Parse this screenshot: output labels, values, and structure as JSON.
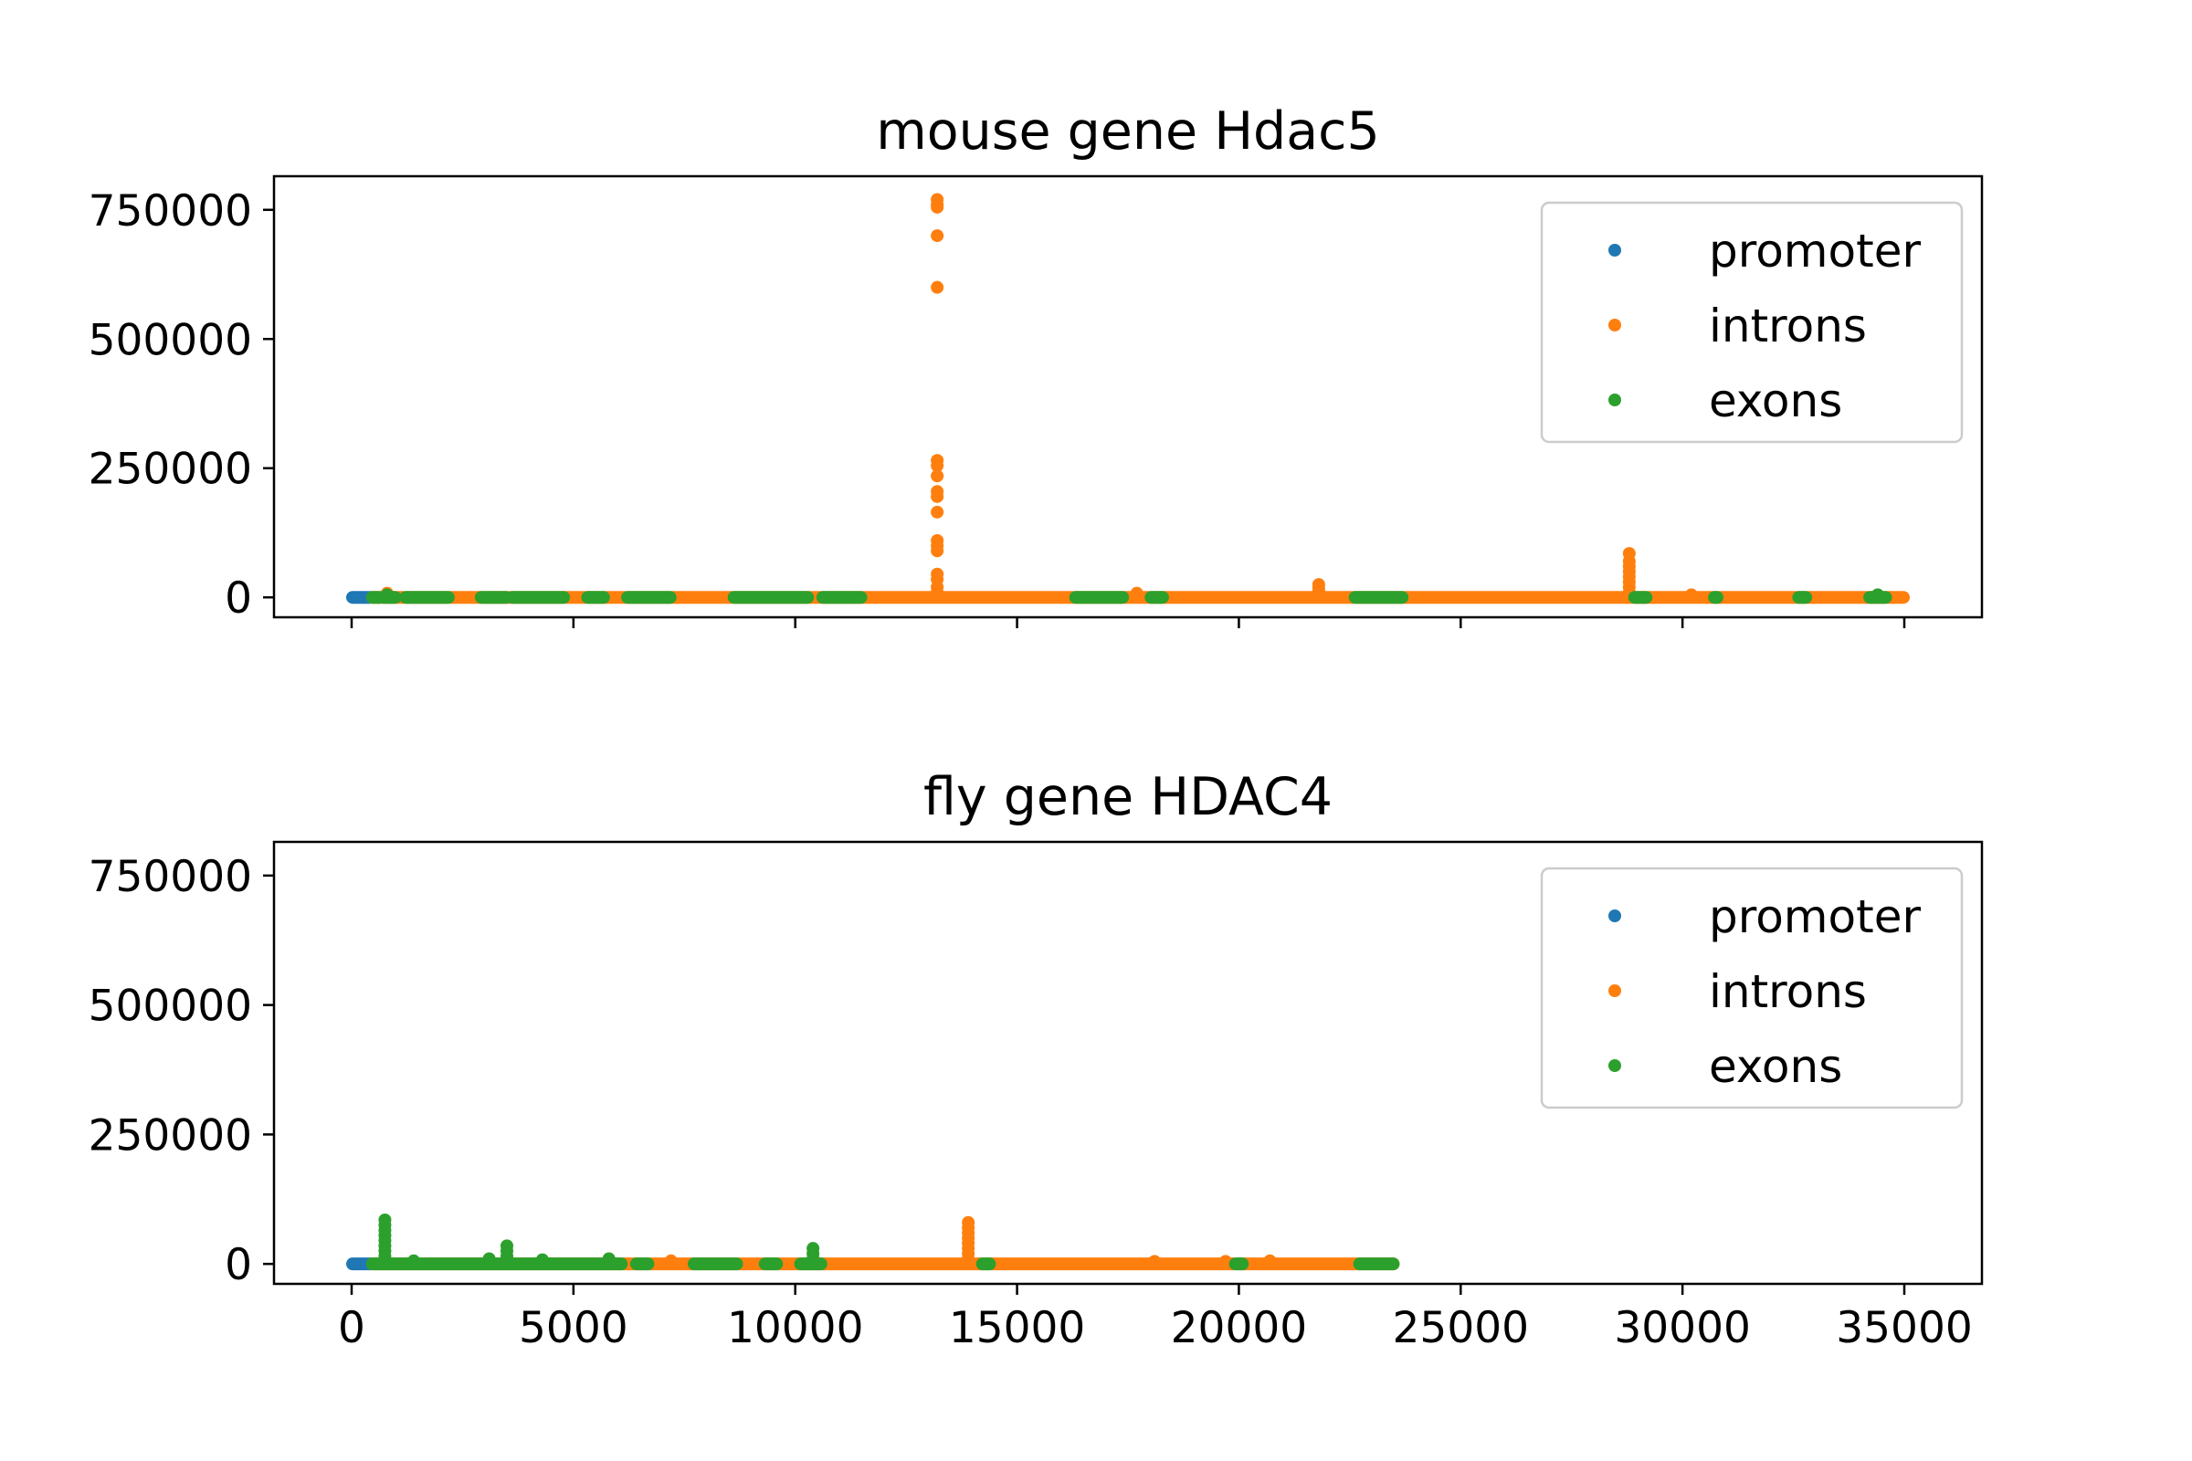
{
  "chart_data": [
    {
      "type": "scatter",
      "title": "mouse gene Hdac5",
      "xlabel": "",
      "ylabel": "",
      "xlim": [
        -1750,
        36750
      ],
      "ylim": [
        -38500,
        815000
      ],
      "xticks": [
        0,
        5000,
        10000,
        15000,
        20000,
        25000,
        30000,
        35000
      ],
      "xtick_labels": [
        "",
        "",
        "",
        "",
        "",
        "",
        "",
        ""
      ],
      "yticks": [
        0,
        250000,
        500000,
        750000
      ],
      "ytick_labels": [
        "0",
        "250000",
        "500000",
        "750000"
      ],
      "grid": false,
      "legend_position": "top-right",
      "series": [
        {
          "name": "promoter",
          "color": "#1f77b4",
          "bands": [
            [
              0,
              450
            ]
          ],
          "points": []
        },
        {
          "name": "introns",
          "color": "#ff7f0e",
          "bands": [
            [
              450,
              35000
            ]
          ],
          "points": [
            [
              13200,
              770000
            ],
            [
              13200,
              760000
            ],
            [
              13200,
              755000
            ],
            [
              13200,
              700000
            ],
            [
              13200,
              600000
            ],
            [
              13200,
              265000
            ],
            [
              13200,
              255000
            ],
            [
              13200,
              235000
            ],
            [
              13200,
              205000
            ],
            [
              13200,
              195000
            ],
            [
              13200,
              165000
            ],
            [
              13200,
              110000
            ],
            [
              13200,
              100000
            ],
            [
              13200,
              90000
            ],
            [
              13200,
              45000
            ],
            [
              13200,
              35000
            ],
            [
              13200,
              20000
            ],
            [
              13200,
              10000
            ],
            [
              21800,
              25000
            ],
            [
              21800,
              18000
            ],
            [
              21800,
              12000
            ],
            [
              21800,
              6000
            ],
            [
              28800,
              85000
            ],
            [
              28800,
              70000
            ],
            [
              28800,
              60000
            ],
            [
              28800,
              50000
            ],
            [
              28800,
              40000
            ],
            [
              28800,
              30000
            ],
            [
              28800,
              20000
            ],
            [
              28800,
              10000
            ],
            [
              800,
              8000
            ],
            [
              17700,
              8000
            ],
            [
              30200,
              5000
            ]
          ]
        },
        {
          "name": "exons",
          "color": "#2ca02c",
          "bands": [
            [
              450,
              650
            ],
            [
              700,
              1000
            ],
            [
              1200,
              2200
            ],
            [
              2900,
              3500
            ],
            [
              3600,
              4800
            ],
            [
              5300,
              5700
            ],
            [
              6200,
              7200
            ],
            [
              8600,
              10300
            ],
            [
              10600,
              11500
            ],
            [
              16300,
              17400
            ],
            [
              18000,
              18300
            ],
            [
              22600,
              23700
            ],
            [
              28900,
              29200
            ],
            [
              30700,
              30800
            ],
            [
              32600,
              32800
            ],
            [
              34200,
              34600
            ]
          ],
          "points": [
            [
              800,
              5000
            ],
            [
              34400,
              5000
            ]
          ]
        }
      ]
    },
    {
      "type": "scatter",
      "title": "fly gene HDAC4",
      "xlabel": "",
      "ylabel": "",
      "xlim": [
        -1750,
        36750
      ],
      "ylim": [
        -38500,
        815000
      ],
      "xticks": [
        0,
        5000,
        10000,
        15000,
        20000,
        25000,
        30000,
        35000
      ],
      "xtick_labels": [
        "0",
        "5000",
        "10000",
        "15000",
        "20000",
        "25000",
        "30000",
        "35000"
      ],
      "yticks": [
        0,
        250000,
        500000,
        750000
      ],
      "ytick_labels": [
        "0",
        "250000",
        "500000",
        "750000"
      ],
      "grid": false,
      "legend_position": "top-right",
      "series": [
        {
          "name": "promoter",
          "color": "#1f77b4",
          "bands": [
            [
              0,
              450
            ]
          ],
          "points": []
        },
        {
          "name": "introns",
          "color": "#ff7f0e",
          "bands": [
            [
              450,
              23500
            ]
          ],
          "points": [
            [
              13900,
              80000
            ],
            [
              13900,
              70000
            ],
            [
              13900,
              60000
            ],
            [
              13900,
              50000
            ],
            [
              13900,
              40000
            ],
            [
              13900,
              30000
            ],
            [
              13900,
              20000
            ],
            [
              13900,
              10000
            ],
            [
              7200,
              6000
            ],
            [
              18100,
              5000
            ],
            [
              19700,
              5000
            ],
            [
              20700,
              6000
            ]
          ]
        },
        {
          "name": "exons",
          "color": "#2ca02c",
          "bands": [
            [
              450,
              6100
            ],
            [
              6400,
              6700
            ],
            [
              7700,
              8700
            ],
            [
              9300,
              9600
            ],
            [
              10100,
              10600
            ],
            [
              14200,
              14400
            ],
            [
              19900,
              20100
            ],
            [
              22700,
              23500
            ]
          ],
          "points": [
            [
              750,
              85000
            ],
            [
              750,
              75000
            ],
            [
              750,
              65000
            ],
            [
              750,
              55000
            ],
            [
              750,
              45000
            ],
            [
              750,
              35000
            ],
            [
              750,
              25000
            ],
            [
              750,
              15000
            ],
            [
              750,
              8000
            ],
            [
              3500,
              35000
            ],
            [
              3500,
              25000
            ],
            [
              3500,
              15000
            ],
            [
              3500,
              8000
            ],
            [
              10400,
              30000
            ],
            [
              10400,
              20000
            ],
            [
              10400,
              10000
            ],
            [
              3100,
              10000
            ],
            [
              4300,
              8000
            ],
            [
              5800,
              10000
            ],
            [
              1400,
              6000
            ]
          ]
        }
      ]
    }
  ]
}
